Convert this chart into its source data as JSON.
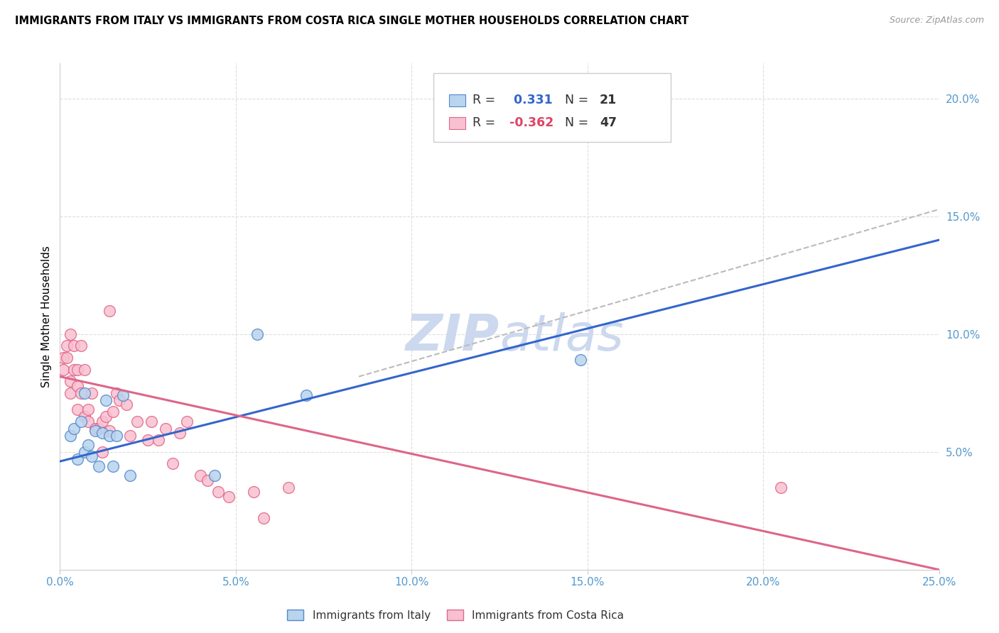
{
  "title": "IMMIGRANTS FROM ITALY VS IMMIGRANTS FROM COSTA RICA SINGLE MOTHER HOUSEHOLDS CORRELATION CHART",
  "source": "Source: ZipAtlas.com",
  "ylabel": "Single Mother Households",
  "xlim": [
    0.0,
    0.25
  ],
  "ylim": [
    0.0,
    0.215
  ],
  "xticks": [
    0.0,
    0.05,
    0.1,
    0.15,
    0.2,
    0.25
  ],
  "yticks_right": [
    0.05,
    0.1,
    0.15,
    0.2
  ],
  "ytick_labels_right": [
    "5.0%",
    "10.0%",
    "15.0%",
    "20.0%"
  ],
  "xtick_labels": [
    "0.0%",
    "5.0%",
    "10.0%",
    "15.0%",
    "20.0%",
    "25.0%"
  ],
  "italy_r": 0.331,
  "italy_n": 21,
  "costa_rica_r": -0.362,
  "costa_rica_n": 47,
  "italy_color": "#b8d4ee",
  "italy_edge_color": "#5588cc",
  "costa_rica_color": "#f8c0d0",
  "costa_rica_edge_color": "#e06888",
  "italy_line_color": "#3366cc",
  "costa_rica_line_color": "#dd6688",
  "trendline_dashed_color": "#bbbbbb",
  "watermark_color": "#ccd8ee",
  "italy_x": [
    0.003,
    0.004,
    0.005,
    0.006,
    0.007,
    0.007,
    0.008,
    0.009,
    0.01,
    0.011,
    0.012,
    0.013,
    0.014,
    0.015,
    0.016,
    0.018,
    0.02,
    0.044,
    0.056,
    0.07,
    0.148
  ],
  "italy_y": [
    0.057,
    0.06,
    0.047,
    0.063,
    0.075,
    0.05,
    0.053,
    0.048,
    0.059,
    0.044,
    0.058,
    0.072,
    0.057,
    0.044,
    0.057,
    0.074,
    0.04,
    0.04,
    0.1,
    0.074,
    0.089
  ],
  "costa_rica_x": [
    0.001,
    0.001,
    0.002,
    0.002,
    0.003,
    0.003,
    0.003,
    0.004,
    0.004,
    0.005,
    0.005,
    0.005,
    0.006,
    0.006,
    0.007,
    0.007,
    0.008,
    0.008,
    0.009,
    0.01,
    0.011,
    0.012,
    0.012,
    0.013,
    0.014,
    0.014,
    0.015,
    0.016,
    0.017,
    0.019,
    0.02,
    0.022,
    0.025,
    0.026,
    0.028,
    0.03,
    0.032,
    0.034,
    0.036,
    0.04,
    0.042,
    0.045,
    0.048,
    0.055,
    0.058,
    0.065,
    0.205
  ],
  "costa_rica_y": [
    0.085,
    0.09,
    0.09,
    0.095,
    0.1,
    0.08,
    0.075,
    0.095,
    0.085,
    0.085,
    0.078,
    0.068,
    0.095,
    0.075,
    0.085,
    0.065,
    0.068,
    0.063,
    0.075,
    0.06,
    0.06,
    0.05,
    0.063,
    0.065,
    0.059,
    0.11,
    0.067,
    0.075,
    0.072,
    0.07,
    0.057,
    0.063,
    0.055,
    0.063,
    0.055,
    0.06,
    0.045,
    0.058,
    0.063,
    0.04,
    0.038,
    0.033,
    0.031,
    0.033,
    0.022,
    0.035,
    0.035
  ],
  "italy_trend_x": [
    0.0,
    0.25
  ],
  "italy_trend_y": [
    0.046,
    0.14
  ],
  "costa_rica_trend_x": [
    0.0,
    0.25
  ],
  "costa_rica_trend_y": [
    0.082,
    0.0
  ],
  "dashed_trend_x": [
    0.085,
    0.25
  ],
  "dashed_trend_y": [
    0.082,
    0.153
  ],
  "legend_r_italy_color": "#3366cc",
  "legend_n_italy_color": "#333333",
  "legend_r_costa_color": "#dd4466",
  "legend_n_costa_color": "#333333",
  "grid_color": "#dddddd",
  "spine_color": "#cccccc"
}
